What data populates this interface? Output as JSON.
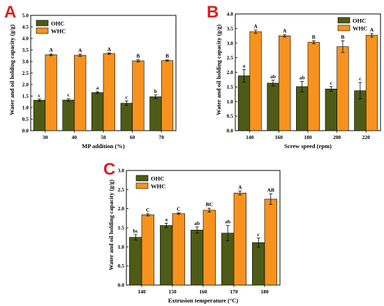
{
  "colors": {
    "ohc": "#4d5b16",
    "whc": "#f7921e",
    "panel_letter": "#d5211d",
    "axis": "#000000"
  },
  "chart_data": [
    {
      "panel": "A",
      "type": "bar",
      "xlabel": "MP addition (%)",
      "ylabel": "Water and oil holding capacity (g/g)",
      "ylim": [
        0,
        5.0
      ],
      "yticks": [
        "0.0",
        "0.5",
        "1.0",
        "1.5",
        "2.0",
        "2.5",
        "3.0",
        "3.5",
        "4.0",
        "4.5",
        "5.0"
      ],
      "categories": [
        "30",
        "40",
        "50",
        "60",
        "70"
      ],
      "legend": "top-left",
      "series": [
        {
          "name": "OHC",
          "values": [
            1.32,
            1.33,
            1.65,
            1.19,
            1.47
          ],
          "errors": [
            0.05,
            0.06,
            0.04,
            0.1,
            0.08
          ],
          "labels": [
            "c",
            "c",
            "a",
            "c",
            "b"
          ]
        },
        {
          "name": "WHC",
          "values": [
            3.29,
            3.27,
            3.34,
            3.03,
            3.04
          ],
          "errors": [
            0.04,
            0.05,
            0.03,
            0.05,
            0.03
          ],
          "labels": [
            "A",
            "A",
            "A",
            "B",
            "B"
          ]
        }
      ]
    },
    {
      "panel": "B",
      "type": "bar",
      "xlabel": "Screw speed (rpm)",
      "ylabel": "Water and oil holding capacity (g/g)",
      "ylim": [
        0,
        4.0
      ],
      "yticks": [
        "0.0",
        "0.5",
        "1.0",
        "1.5",
        "2.0",
        "2.5",
        "3.0",
        "3.5",
        "4.0"
      ],
      "categories": [
        "140",
        "160",
        "180",
        "200",
        "220"
      ],
      "legend": "top-right",
      "series": [
        {
          "name": "OHC",
          "values": [
            1.88,
            1.63,
            1.51,
            1.43,
            1.37
          ],
          "errors": [
            0.22,
            0.1,
            0.18,
            0.08,
            0.28
          ],
          "labels": [
            "a",
            "ab",
            "ab",
            "c",
            "c"
          ]
        },
        {
          "name": "WHC",
          "values": [
            3.39,
            3.25,
            3.03,
            2.88,
            3.27
          ],
          "errors": [
            0.06,
            0.04,
            0.05,
            0.2,
            0.06
          ],
          "labels": [
            "A",
            "A",
            "B",
            "B",
            "A"
          ]
        }
      ]
    },
    {
      "panel": "C",
      "type": "bar",
      "xlabel": "Extrusion temperature (°C)",
      "ylabel": "Water and oil holding capacity (g/g)",
      "ylim": [
        0,
        3.0
      ],
      "yticks": [
        "0.0",
        "0.5",
        "1.0",
        "1.5",
        "2.0",
        "2.5",
        "3.0"
      ],
      "categories": [
        "140",
        "150",
        "160",
        "170",
        "180"
      ],
      "legend": "top-left",
      "series": [
        {
          "name": "OHC",
          "values": [
            1.25,
            1.56,
            1.44,
            1.36,
            1.11
          ],
          "errors": [
            0.07,
            0.06,
            0.08,
            0.2,
            0.12
          ],
          "labels": [
            "bc",
            "a",
            "ab",
            "ab",
            "c"
          ]
        },
        {
          "name": "WHC",
          "values": [
            1.84,
            1.87,
            1.96,
            2.41,
            2.25
          ],
          "errors": [
            0.03,
            0.02,
            0.05,
            0.05,
            0.14
          ],
          "labels": [
            "C",
            "C",
            "BC",
            "A",
            "AB"
          ]
        }
      ]
    }
  ]
}
